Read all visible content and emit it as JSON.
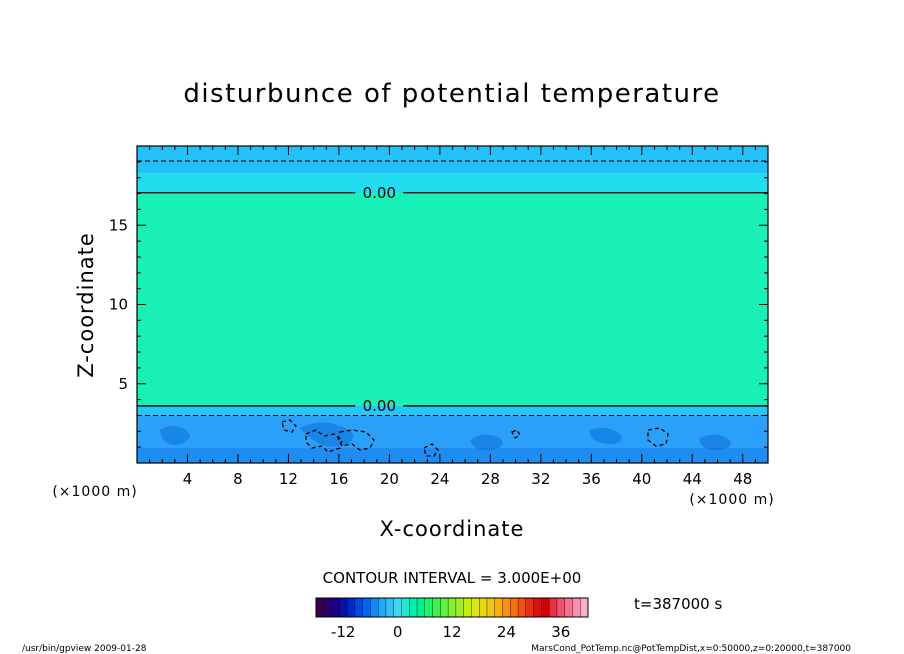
{
  "chart_data": {
    "type": "heatmap",
    "title": "disturbunce of potential temperature",
    "xlabel": "X-coordinate",
    "ylabel": "Z-coordinate",
    "x_unit": "(×1000 m)",
    "y_unit": "(×1000 m)",
    "xlim": [
      0,
      50
    ],
    "ylim": [
      0,
      20
    ],
    "x_ticks": [
      4,
      8,
      12,
      16,
      20,
      24,
      28,
      32,
      36,
      40,
      44,
      48
    ],
    "y_ticks": [
      5,
      10,
      15
    ],
    "contour_interval_text": "CONTOUR INTERVAL = 3.000E+00",
    "time_text": "t=387000 s",
    "colorbar": {
      "ticks": [
        -12,
        0,
        12,
        24,
        36
      ],
      "range": [
        -18,
        42
      ],
      "colors": [
        "#3a0050",
        "#2a006a",
        "#1a0088",
        "#0a10a8",
        "#0028c8",
        "#0048e0",
        "#0068f0",
        "#1088f8",
        "#20a8f8",
        "#30c0f8",
        "#40d8f0",
        "#20e8d0",
        "#00f0b0",
        "#00f090",
        "#20f070",
        "#40f050",
        "#60f040",
        "#80f030",
        "#a0f020",
        "#c0f010",
        "#d8e810",
        "#e8d810",
        "#f0c810",
        "#f8b010",
        "#f89010",
        "#f87010",
        "#f05010",
        "#e83010",
        "#e01010",
        "#d80000",
        "#e83040",
        "#f05070",
        "#f87090",
        "#f890b0",
        "#f8b0c8"
      ]
    },
    "bands": [
      {
        "z_from": 0,
        "z_to": 1.0,
        "color": "#1e8cf0"
      },
      {
        "z_from": 1.0,
        "z_to": 3.0,
        "color": "#2aa0f8"
      },
      {
        "z_from": 3.0,
        "z_to": 3.6,
        "color": "#24c8f8"
      },
      {
        "z_from": 3.6,
        "z_to": 17.0,
        "color": "#18f0b8"
      },
      {
        "z_from": 17.0,
        "z_to": 18.3,
        "color": "#24dcf0"
      },
      {
        "z_from": 18.3,
        "z_to": 20.0,
        "color": "#24c0f8"
      }
    ],
    "contour_lines": [
      {
        "z": 17.05,
        "style": "solid",
        "label": "0.00",
        "label_x": 19.2
      },
      {
        "z": 19.05,
        "style": "dashed"
      },
      {
        "z": 3.6,
        "style": "solid",
        "label": "0.00",
        "label_x": 19.2
      },
      {
        "z": 3.0,
        "style": "dashed"
      }
    ]
  },
  "footer": {
    "left": "/usr/bin/gpview   2009-01-28",
    "right": "MarsCond_PotTemp.nc@PotTempDist,x=0:50000,z=0:20000,t=387000"
  }
}
